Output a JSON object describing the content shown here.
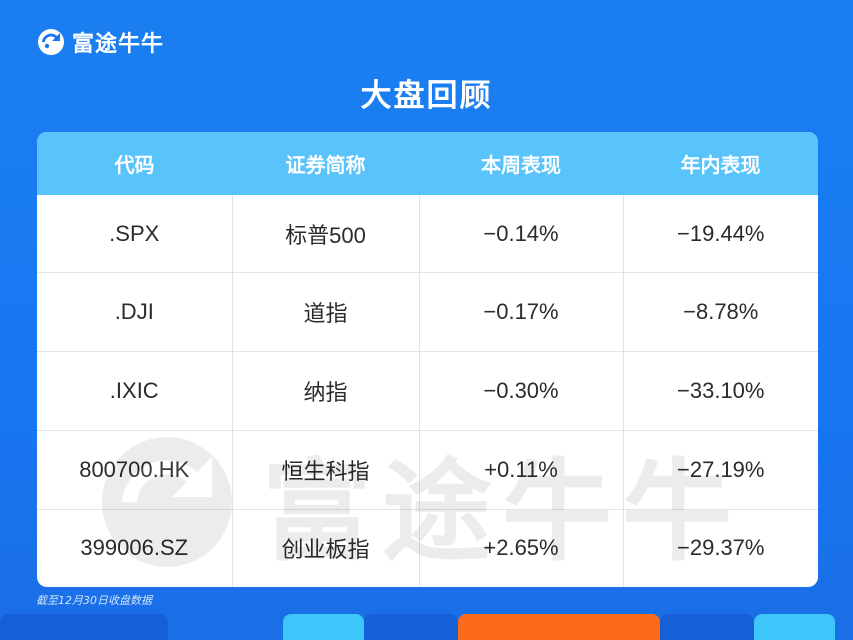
{
  "brand": {
    "name": "富途牛牛",
    "logo_icon": "futu-logo-icon"
  },
  "title": "大盘回顾",
  "table": {
    "headers": [
      "代码",
      "证券简称",
      "本周表现",
      "年内表现"
    ],
    "rows": [
      [
        ".SPX",
        "标普500",
        "−0.14%",
        "−19.44%"
      ],
      [
        ".DJI",
        "道指",
        "−0.17%",
        "−8.78%"
      ],
      [
        ".IXIC",
        "纳指",
        "−0.30%",
        "−33.10%"
      ],
      [
        "800700.HK",
        "恒生科指",
        "+0.11%",
        "−27.19%"
      ],
      [
        "399006.SZ",
        "创业板指",
        "+2.65%",
        "−29.37%"
      ]
    ]
  },
  "footnote": "截至12月30日收盘数据",
  "colors": {
    "background": "#1877f2",
    "header": "#59c3fb",
    "accent_orange": "#ff6a1a",
    "accent_light": "#3dc6fa"
  }
}
